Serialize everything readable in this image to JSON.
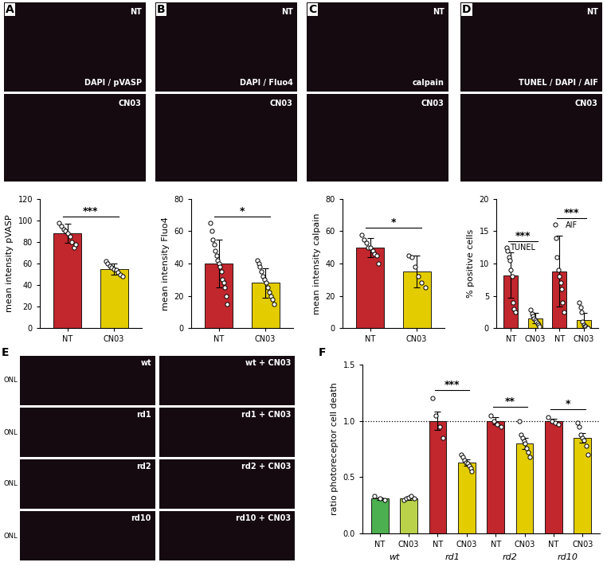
{
  "chart_data": [
    {
      "type": "bar",
      "ylabel": "mean intensity pVASP",
      "categories": [
        "NT",
        "CN03"
      ],
      "values": [
        88,
        55
      ],
      "errors": [
        9,
        5
      ],
      "points": [
        [
          98,
          95,
          92,
          90,
          88,
          85,
          80,
          75,
          78
        ],
        [
          62,
          60,
          58,
          56,
          55,
          54,
          52,
          50,
          48
        ]
      ],
      "colors": [
        "#c1272d",
        "#e3cc00"
      ],
      "ylim": [
        0,
        120
      ],
      "yticks": [
        0,
        20,
        40,
        60,
        80,
        100,
        120
      ],
      "significance": [
        {
          "pair": [
            0,
            1
          ],
          "label": "***"
        }
      ]
    },
    {
      "type": "bar",
      "ylabel": "mean intensity Fluo4",
      "categories": [
        "NT",
        "CN03"
      ],
      "values": [
        40,
        28
      ],
      "errors": [
        15,
        9
      ],
      "points": [
        [
          65,
          60,
          55,
          52,
          48,
          45,
          42,
          40,
          38,
          35,
          30,
          28,
          25,
          20,
          15
        ],
        [
          42,
          40,
          38,
          35,
          32,
          30,
          28,
          25,
          22,
          20,
          18,
          15
        ]
      ],
      "colors": [
        "#c1272d",
        "#e3cc00"
      ],
      "ylim": [
        0,
        80
      ],
      "yticks": [
        0,
        20,
        40,
        60,
        80
      ],
      "significance": [
        {
          "pair": [
            0,
            1
          ],
          "label": "*"
        }
      ]
    },
    {
      "type": "bar",
      "ylabel": "mean intensity calpain",
      "categories": [
        "NT",
        "CN03"
      ],
      "values": [
        50,
        35
      ],
      "errors": [
        6,
        10
      ],
      "points": [
        [
          58,
          55,
          53,
          50,
          50,
          48,
          46,
          45,
          40
        ],
        [
          45,
          44,
          38,
          32,
          28,
          25
        ]
      ],
      "colors": [
        "#c1272d",
        "#e3cc00"
      ],
      "ylim": [
        0,
        80
      ],
      "yticks": [
        0,
        20,
        40,
        60,
        80
      ],
      "significance": [
        {
          "pair": [
            0,
            1
          ],
          "label": "*"
        }
      ]
    },
    {
      "type": "bar",
      "ylabel": "% positive cells",
      "categories": [
        "NT",
        "CN03",
        "NT",
        "CN03"
      ],
      "values": [
        8.2,
        1.5,
        8.8,
        1.2
      ],
      "errors": [
        3.5,
        0.8,
        5.5,
        1.2
      ],
      "points": [
        [
          12.5,
          12,
          11,
          10.5,
          9,
          8,
          4,
          3,
          2.5
        ],
        [
          2.8,
          2.2,
          1.8,
          1.5,
          1.2,
          1,
          0.8,
          0.5,
          0.3
        ],
        [
          16,
          14,
          11,
          9,
          8,
          7,
          6,
          4,
          2.5
        ],
        [
          4,
          3.2,
          2.5,
          1,
          0.5,
          0.3,
          0.2,
          0,
          0
        ]
      ],
      "colors": [
        "#c1272d",
        "#e3cc00",
        "#c1272d",
        "#e3cc00"
      ],
      "ylim": [
        0,
        20
      ],
      "yticks": [
        0,
        5,
        10,
        15,
        20
      ],
      "significance": [
        {
          "pair": [
            0,
            1
          ],
          "label": "***",
          "group": "TUNEL"
        },
        {
          "pair": [
            2,
            3
          ],
          "label": "***",
          "group": "AIF"
        }
      ]
    },
    {
      "type": "bar",
      "panel": "F",
      "ylabel": "ratio photoreceptor cell death",
      "categories": [
        "NT",
        "CN03",
        "NT",
        "CN03",
        "NT",
        "CN03",
        "NT",
        "CN03"
      ],
      "values": [
        0.31,
        0.31,
        1.0,
        0.63,
        1.0,
        0.8,
        1.0,
        0.85
      ],
      "errors": [
        0.01,
        0.01,
        0.08,
        0.03,
        0.03,
        0.05,
        0.02,
        0.04
      ],
      "points": [
        [
          0.33,
          0.31,
          0.3
        ],
        [
          0.3,
          0.31,
          0.32,
          0.33,
          0.31
        ],
        [
          1.2,
          1.05,
          0.95,
          0.85
        ],
        [
          0.7,
          0.68,
          0.65,
          0.63,
          0.62,
          0.6,
          0.58,
          0.55
        ],
        [
          1.05,
          1.0,
          0.97,
          0.95
        ],
        [
          1.0,
          0.88,
          0.85,
          0.82,
          0.8,
          0.76,
          0.72,
          0.68
        ],
        [
          1.03,
          1.0,
          0.98,
          0.97
        ],
        [
          0.98,
          0.95,
          0.88,
          0.85,
          0.83,
          0.78,
          0.7
        ]
      ],
      "colors": [
        "#4caf50",
        "#b9d24a",
        "#c1272d",
        "#e3cc00",
        "#c1272d",
        "#e3cc00",
        "#c1272d",
        "#e3cc00"
      ],
      "ylim": [
        0,
        1.5
      ],
      "yticks": [
        {
          "value": 0,
          "label": "0.0"
        },
        {
          "value": 0.5,
          "label": "0.5"
        },
        {
          "value": 1,
          "label": "1.0"
        },
        {
          "value": 1.5,
          "label": "1.5"
        }
      ],
      "reference_line": 1.0,
      "groups": [
        {
          "label": "wt",
          "members": [
            0,
            1
          ]
        },
        {
          "label": "rd1",
          "members": [
            2,
            3
          ]
        },
        {
          "label": "rd2",
          "members": [
            4,
            5
          ]
        },
        {
          "label": "rd10",
          "members": [
            6,
            7
          ]
        }
      ],
      "significance": [
        {
          "pair": [
            2,
            3
          ],
          "label": "***"
        },
        {
          "pair": [
            4,
            5
          ],
          "label": "**"
        },
        {
          "pair": [
            6,
            7
          ],
          "label": "*"
        }
      ]
    }
  ],
  "image_panels": [
    {
      "panel": "A",
      "images": [
        "NT",
        "CN03"
      ],
      "stain": "DAPI / pVASP"
    },
    {
      "panel": "B",
      "images": [
        "NT",
        "CN03"
      ],
      "stain": "DAPI / Fluo4"
    },
    {
      "panel": "C",
      "images": [
        "NT",
        "CN03"
      ],
      "stain": "calpain"
    },
    {
      "panel": "D",
      "images": [
        "NT",
        "CN03"
      ],
      "stain": "TUNEL / DAPI / AIF"
    },
    {
      "panel": "E",
      "images": [
        "wt",
        "wt + CN03",
        "rd1",
        "rd1 + CN03",
        "rd2",
        "rd2 + CN03",
        "rd10",
        "rd10 + CN03"
      ],
      "layer": "ONL"
    }
  ]
}
